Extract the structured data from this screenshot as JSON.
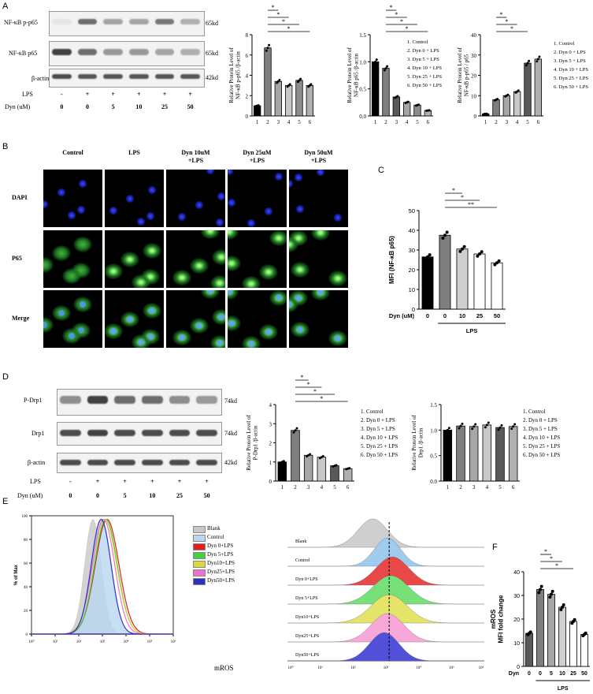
{
  "panels": {
    "a": "A",
    "b": "B",
    "c": "C",
    "d": "D",
    "e": "E",
    "f": "F"
  },
  "panelA": {
    "rows": [
      {
        "name": "NF-κB p-p65",
        "kd": "65kd"
      },
      {
        "name": "NF-κB p65",
        "kd": "65kd"
      },
      {
        "name": "β-actin",
        "kd": "42kd"
      }
    ],
    "lps_label": "LPS",
    "lps_values": [
      "-",
      "+",
      "+",
      "+",
      "+",
      "+"
    ],
    "dyn_label": "Dyn (uM)",
    "dyn_values": [
      "0",
      "0",
      "5",
      "10",
      "25",
      "50"
    ]
  },
  "panelD": {
    "rows": [
      {
        "name": "P-Drp1",
        "kd": "74kd"
      },
      {
        "name": "Drp1",
        "kd": "74kd"
      },
      {
        "name": "β-actin",
        "kd": "42kd"
      }
    ],
    "lps_label": "LPS",
    "lps_values": [
      "-",
      "+",
      "+",
      "+",
      "+",
      "+"
    ],
    "dyn_label": "Dyn (uM)",
    "dyn_values": [
      "0",
      "0",
      "5",
      "10",
      "25",
      "50"
    ]
  },
  "legend6": [
    "1. Control",
    "2. Dyn 0 + LPS",
    "3. Dyn 5 + LPS",
    "4. Dyn 10 + LPS",
    "5. Dyn 25 + LPS",
    "6. Dyn 50 + LPS"
  ],
  "panelB": {
    "cols": [
      "Control",
      "LPS",
      "Dyn  10uM\n+LPS",
      "Dyn  25uM\n+LPS",
      "Dyn  50uM\n+LPS"
    ],
    "rows": [
      "DAPI",
      "P65",
      "Merge"
    ]
  },
  "chart_data": [
    {
      "id": "A1",
      "type": "bar",
      "categories": [
        "1",
        "2",
        "3",
        "4",
        "5",
        "6"
      ],
      "values": [
        1.0,
        6.7,
        3.4,
        3.0,
        3.5,
        3.0
      ],
      "ylabel": "Relative Protein Level of NF-κB p-p65 /β-actin",
      "ylim": [
        0,
        8
      ],
      "yticks": [
        "0",
        "2",
        "4",
        "6",
        "8"
      ],
      "sig": [
        "*",
        "*",
        "*",
        "*"
      ]
    },
    {
      "id": "A2",
      "type": "bar",
      "categories": [
        "1",
        "2",
        "3",
        "4",
        "5",
        "6"
      ],
      "values": [
        1.0,
        0.88,
        0.35,
        0.25,
        0.2,
        0.1
      ],
      "ylabel": "Relative Protein Level of NF-κB p65 /β-actin",
      "ylim": [
        0,
        1.5
      ],
      "yticks": [
        "0.0",
        "0.5",
        "1.0",
        "1.5"
      ],
      "sig": [
        "*",
        "*",
        "*",
        "*"
      ]
    },
    {
      "id": "A3",
      "type": "bar",
      "categories": [
        "1",
        "2",
        "3",
        "4",
        "5",
        "6"
      ],
      "values": [
        1,
        8,
        10,
        12,
        26,
        28
      ],
      "ylabel": "Relative Protein Level of NF-κB p-p65 / p65",
      "ylim": [
        0,
        40
      ],
      "yticks": [
        "0",
        "10",
        "20",
        "30",
        "40"
      ],
      "sig": [
        "*",
        "*",
        "*"
      ]
    },
    {
      "id": "C",
      "type": "bar",
      "categories": [
        "0",
        "0",
        "10",
        "25",
        "50"
      ],
      "values": [
        26.5,
        37.5,
        30.5,
        28.0,
        23.5
      ],
      "ylabel": "MFI (NF-κB p65)",
      "xlabel": "Dyn (uM)",
      "group_label": "LPS",
      "ylim": [
        0,
        50
      ],
      "yticks": [
        "0",
        "10",
        "20",
        "30",
        "40",
        "50"
      ],
      "sig": [
        "*",
        "*",
        "**"
      ]
    },
    {
      "id": "D1",
      "type": "bar",
      "categories": [
        "1",
        "2",
        "3",
        "4",
        "5",
        "6"
      ],
      "values": [
        1.0,
        2.65,
        1.35,
        1.25,
        0.8,
        0.65
      ],
      "ylabel": "Relative Protein Level of P-Drp1 /β-actin",
      "ylim": [
        0,
        4
      ],
      "yticks": [
        "0",
        "1",
        "2",
        "3",
        "4"
      ],
      "sig": [
        "*",
        "*",
        "*",
        "*"
      ]
    },
    {
      "id": "D2",
      "type": "bar",
      "categories": [
        "1",
        "2",
        "3",
        "4",
        "5",
        "6"
      ],
      "values": [
        1.0,
        1.08,
        1.07,
        1.1,
        1.05,
        1.07
      ],
      "ylabel": "Relative Protein Level of Drp1 /β-actin",
      "ylim": [
        0,
        1.5
      ],
      "yticks": [
        "0.0",
        "0.5",
        "1.0",
        "1.5"
      ],
      "sig": []
    },
    {
      "id": "F",
      "type": "bar",
      "categories": [
        "0",
        "0",
        "5",
        "10",
        "25",
        "50"
      ],
      "values": [
        14,
        32.5,
        30.5,
        25,
        19,
        13.5
      ],
      "ylabel": "mROS MFI fold change",
      "xlabel": "Dyn",
      "group_label": "LPS",
      "ylim": [
        0,
        40
      ],
      "yticks": [
        "0",
        "10",
        "20",
        "30",
        "40"
      ],
      "sig": [
        "*",
        "*",
        "*"
      ]
    }
  ],
  "panelE": {
    "ylabel": "% of Max",
    "yticks": [
      "0",
      "20",
      "40",
      "60",
      "80",
      "100"
    ],
    "xlabel": "mROS",
    "xticks": [
      "10⁰",
      "10¹",
      "10²",
      "10³",
      "10⁴",
      "10⁵",
      "10⁶"
    ],
    "legend": [
      {
        "name": "Blank",
        "color": "#c8c8c8"
      },
      {
        "name": "Control",
        "color": "#b9d7f0"
      },
      {
        "name": "Dyn 0+LPS",
        "color": "#e02020"
      },
      {
        "name": "Dyn 5+LPS",
        "color": "#40d040"
      },
      {
        "name": "Dyn10+LPS",
        "color": "#d8d840"
      },
      {
        "name": "Dyn25+LPS",
        "color": "#f070d0"
      },
      {
        "name": "Dyn50+LPS",
        "color": "#3030c0"
      }
    ],
    "stack_labels": [
      "Blank",
      "Control",
      "Dyn 0+LPS",
      "Dyn 5+LPS",
      "Dyn10+LPS",
      "Dyn25+LPS",
      "Dyn50+LPS"
    ],
    "stack_colors": [
      "#cfcfcf",
      "#9fcbef",
      "#e84848",
      "#78e078",
      "#e4e46a",
      "#f8a8d8",
      "#5050d8"
    ]
  }
}
